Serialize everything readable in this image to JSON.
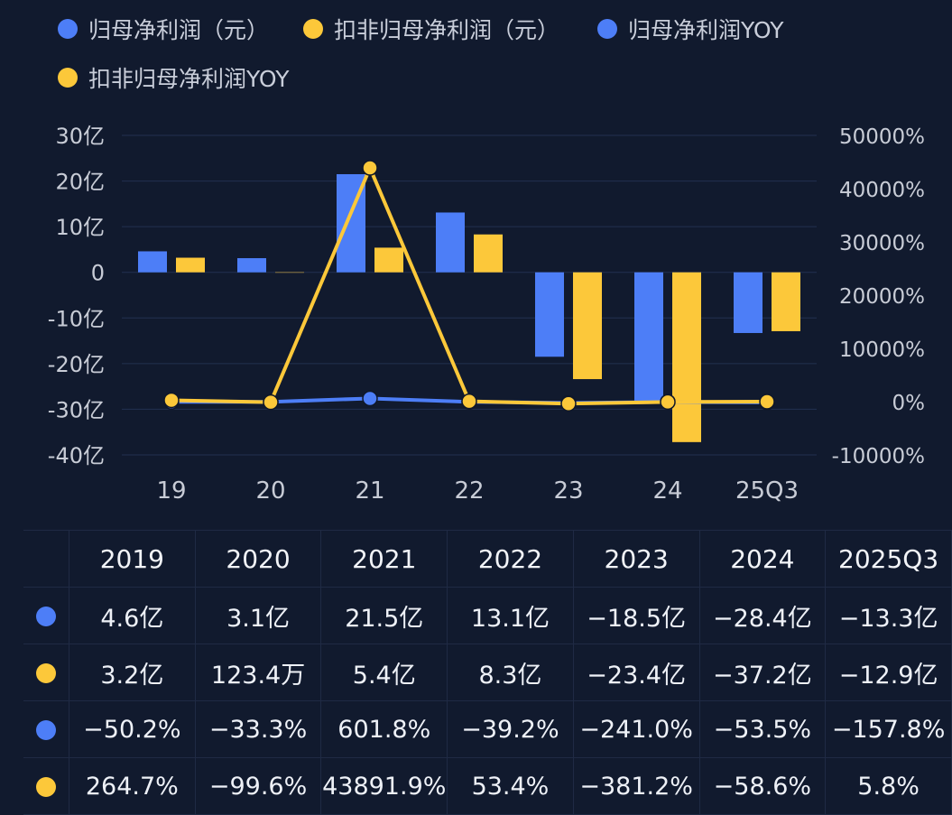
{
  "colors": {
    "blue": "#4d7ef7",
    "yellow": "#fcc83a",
    "grid": "#223050",
    "axis_text": "#c8ccd6"
  },
  "legend": [
    {
      "label": "归母净利润（元）",
      "color": "#4d7ef7"
    },
    {
      "label": "扣非归母净利润（元）",
      "color": "#fcc83a"
    },
    {
      "label": "归母净利润YOY",
      "color": "#4d7ef7"
    },
    {
      "label": "扣非归母净利润YOY",
      "color": "#fcc83a"
    }
  ],
  "chart_data": {
    "type": "bar",
    "categories": [
      "19",
      "20",
      "21",
      "22",
      "23",
      "24",
      "25Q3"
    ],
    "left_axis": {
      "ticks": [
        "30亿",
        "20亿",
        "10亿",
        "0",
        "-10亿",
        "-20亿",
        "-30亿",
        "-40亿"
      ],
      "ylim": [
        -40,
        30
      ],
      "unit": "亿"
    },
    "right_axis": {
      "ticks": [
        "50000%",
        "40000%",
        "30000%",
        "20000%",
        "10000%",
        "0%",
        "-10000%"
      ],
      "ylim": [
        -10000,
        50000
      ]
    },
    "series": [
      {
        "name": "归母净利润（元）",
        "kind": "bar",
        "axis": "left",
        "color": "#4d7ef7",
        "values": [
          4.6,
          3.1,
          21.5,
          13.1,
          -18.5,
          -28.4,
          -13.3
        ]
      },
      {
        "name": "扣非归母净利润（元）",
        "kind": "bar",
        "axis": "left",
        "color": "#fcc83a",
        "values": [
          3.2,
          0.01234,
          5.4,
          8.3,
          -23.4,
          -37.2,
          -12.9
        ]
      },
      {
        "name": "归母净利润YOY",
        "kind": "line",
        "axis": "right",
        "color": "#4d7ef7",
        "values": [
          -50.2,
          -33.3,
          601.8,
          -39.2,
          -241.0,
          -53.5,
          -157.8
        ]
      },
      {
        "name": "扣非归母净利润YOY",
        "kind": "line",
        "axis": "right",
        "color": "#fcc83a",
        "values": [
          264.7,
          -99.6,
          43891.9,
          53.4,
          -381.2,
          -58.6,
          5.8
        ]
      }
    ]
  },
  "table": {
    "headers": [
      "2019",
      "2020",
      "2021",
      "2022",
      "2023",
      "2024",
      "2025Q3"
    ],
    "rows": [
      {
        "color": "#4d7ef7",
        "cells": [
          "4.6亿",
          "3.1亿",
          "21.5亿",
          "13.1亿",
          "−18.5亿",
          "−28.4亿",
          "−13.3亿"
        ]
      },
      {
        "color": "#fcc83a",
        "cells": [
          "3.2亿",
          "123.4万",
          "5.4亿",
          "8.3亿",
          "−23.4亿",
          "−37.2亿",
          "−12.9亿"
        ]
      },
      {
        "color": "#4d7ef7",
        "cells": [
          "−50.2%",
          "−33.3%",
          "601.8%",
          "−39.2%",
          "−241.0%",
          "−53.5%",
          "−157.8%"
        ]
      },
      {
        "color": "#fcc83a",
        "cells": [
          "264.7%",
          "−99.6%",
          "43891.9%",
          "53.4%",
          "−381.2%",
          "−58.6%",
          "5.8%"
        ]
      }
    ]
  }
}
